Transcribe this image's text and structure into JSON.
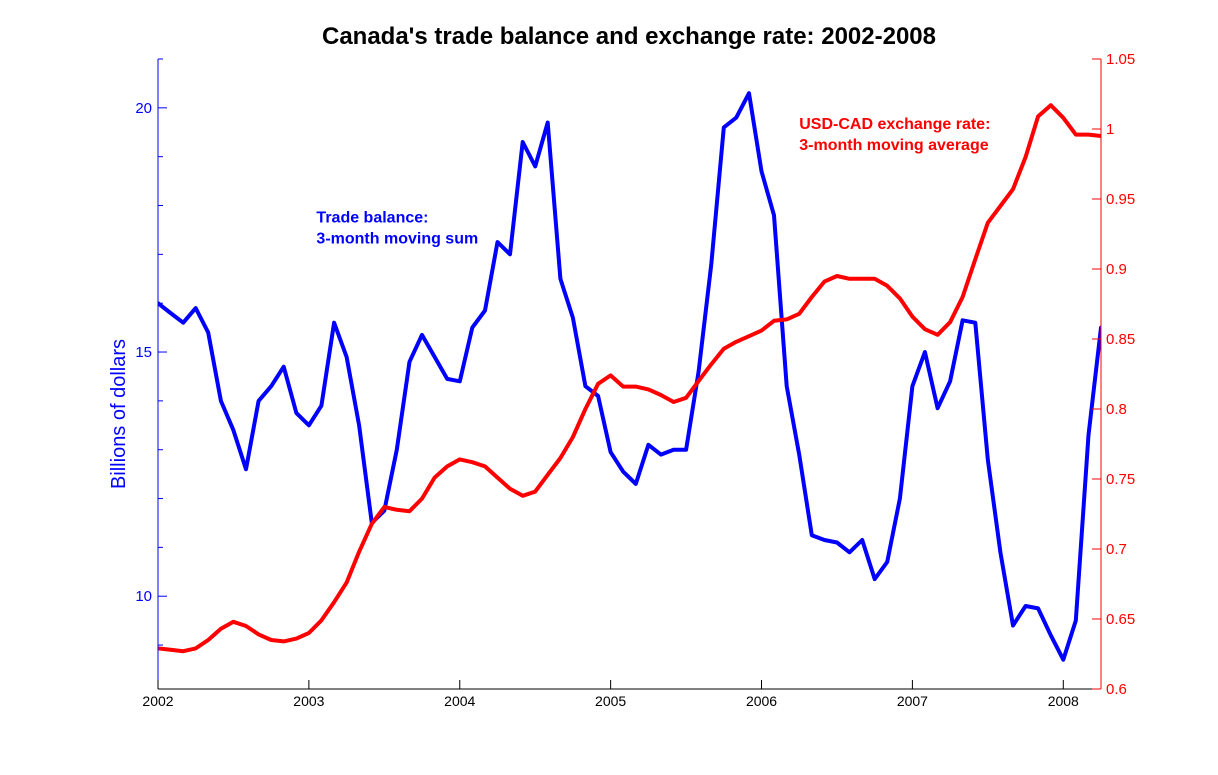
{
  "chart_data": {
    "type": "line",
    "title": "Canada's trade balance and exchange rate: 2002-2008",
    "xlabel": "",
    "ylabel": "Billions of dollars",
    "ylabel_right": "",
    "xlim": [
      2002,
      2008.25
    ],
    "ylim": [
      8.1,
      21
    ],
    "ylim_right": [
      0.6,
      1.05
    ],
    "x_ticks": [
      2002,
      2003,
      2004,
      2005,
      2006,
      2007,
      2008
    ],
    "y_ticks": [
      10,
      15,
      20
    ],
    "y_ticks_right": [
      0.6,
      0.65,
      0.7,
      0.75,
      0.8,
      0.85,
      0.9,
      0.95,
      1,
      1.05
    ],
    "grid": false,
    "legend": "none",
    "colors": {
      "left_axis": "#0000ff",
      "right_axis": "#ff0000"
    },
    "annotations": [
      {
        "lines": [
          "Trade balance:",
          "3-month moving sum"
        ],
        "color": "#0000ff",
        "at": [
          2003.05,
          17.65
        ]
      },
      {
        "lines": [
          "USD-CAD exchange rate:",
          "3-month moving average"
        ],
        "color": "#ff0000",
        "at": [
          2006.25,
          1.0
        ]
      }
    ],
    "series": [
      {
        "name": "Trade balance: 3-month moving sum",
        "axis": "left",
        "color": "#0000ff",
        "x": [
          2002.0,
          2002.083,
          2002.167,
          2002.25,
          2002.333,
          2002.417,
          2002.5,
          2002.583,
          2002.667,
          2002.75,
          2002.833,
          2002.917,
          2003.0,
          2003.083,
          2003.167,
          2003.25,
          2003.333,
          2003.417,
          2003.5,
          2003.583,
          2003.667,
          2003.75,
          2003.833,
          2003.917,
          2004.0,
          2004.083,
          2004.167,
          2004.25,
          2004.333,
          2004.417,
          2004.5,
          2004.583,
          2004.667,
          2004.75,
          2004.833,
          2004.917,
          2005.0,
          2005.083,
          2005.167,
          2005.25,
          2005.333,
          2005.417,
          2005.5,
          2005.583,
          2005.667,
          2005.75,
          2005.833,
          2005.917,
          2006.0,
          2006.083,
          2006.167,
          2006.25,
          2006.333,
          2006.417,
          2006.5,
          2006.583,
          2006.667,
          2006.75,
          2006.833,
          2006.917,
          2007.0,
          2007.083,
          2007.167,
          2007.25,
          2007.333,
          2007.417,
          2007.5,
          2007.583,
          2007.667,
          2007.75,
          2007.833,
          2007.917,
          2008.0,
          2008.083,
          2008.167,
          2008.25
        ],
        "values": [
          16.0,
          15.8,
          15.6,
          15.9,
          15.4,
          14.0,
          13.4,
          12.6,
          14.0,
          14.3,
          14.7,
          13.75,
          13.5,
          13.9,
          15.6,
          14.9,
          13.5,
          11.5,
          11.75,
          13.0,
          14.8,
          15.35,
          14.9,
          14.45,
          14.4,
          15.5,
          15.85,
          17.25,
          17.0,
          19.3,
          18.8,
          19.7,
          16.5,
          15.7,
          14.3,
          14.1,
          12.95,
          12.55,
          12.3,
          13.1,
          12.9,
          13.0,
          13.0,
          14.6,
          16.8,
          19.6,
          19.8,
          20.3,
          18.7,
          17.8,
          14.3,
          12.9,
          11.25,
          11.15,
          11.1,
          10.9,
          11.15,
          10.35,
          10.7,
          12.0,
          14.3,
          15.0,
          13.85,
          14.4,
          15.65,
          15.6,
          12.8,
          10.9,
          9.4,
          9.8,
          9.75,
          9.2,
          8.7,
          9.5,
          13.3,
          15.5
        ]
      },
      {
        "name": "USD-CAD exchange rate: 3-month moving average",
        "axis": "right",
        "color": "#ff0000",
        "x": [
          2002.0,
          2002.083,
          2002.167,
          2002.25,
          2002.333,
          2002.417,
          2002.5,
          2002.583,
          2002.667,
          2002.75,
          2002.833,
          2002.917,
          2003.0,
          2003.083,
          2003.167,
          2003.25,
          2003.333,
          2003.417,
          2003.5,
          2003.583,
          2003.667,
          2003.75,
          2003.833,
          2003.917,
          2004.0,
          2004.083,
          2004.167,
          2004.25,
          2004.333,
          2004.417,
          2004.5,
          2004.583,
          2004.667,
          2004.75,
          2004.833,
          2004.917,
          2005.0,
          2005.083,
          2005.167,
          2005.25,
          2005.333,
          2005.417,
          2005.5,
          2005.583,
          2005.667,
          2005.75,
          2005.833,
          2005.917,
          2006.0,
          2006.083,
          2006.167,
          2006.25,
          2006.333,
          2006.417,
          2006.5,
          2006.583,
          2006.667,
          2006.75,
          2006.833,
          2006.917,
          2007.0,
          2007.083,
          2007.167,
          2007.25,
          2007.333,
          2007.417,
          2007.5,
          2007.583,
          2007.667,
          2007.75,
          2007.833,
          2007.917,
          2008.0,
          2008.083,
          2008.167,
          2008.25
        ],
        "values": [
          0.629,
          0.628,
          0.627,
          0.629,
          0.635,
          0.643,
          0.648,
          0.645,
          0.639,
          0.635,
          0.634,
          0.636,
          0.64,
          0.649,
          0.662,
          0.676,
          0.698,
          0.718,
          0.73,
          0.728,
          0.727,
          0.736,
          0.751,
          0.759,
          0.764,
          0.762,
          0.759,
          0.751,
          0.743,
          0.738,
          0.741,
          0.753,
          0.765,
          0.78,
          0.8,
          0.818,
          0.824,
          0.816,
          0.816,
          0.814,
          0.81,
          0.805,
          0.808,
          0.82,
          0.832,
          0.843,
          0.848,
          0.852,
          0.856,
          0.863,
          0.864,
          0.868,
          0.88,
          0.891,
          0.895,
          0.893,
          0.893,
          0.893,
          0.888,
          0.879,
          0.866,
          0.857,
          0.853,
          0.862,
          0.88,
          0.907,
          0.933,
          0.945,
          0.957,
          0.98,
          1.009,
          1.017,
          1.008,
          0.996,
          0.996,
          0.995
        ]
      }
    ]
  }
}
